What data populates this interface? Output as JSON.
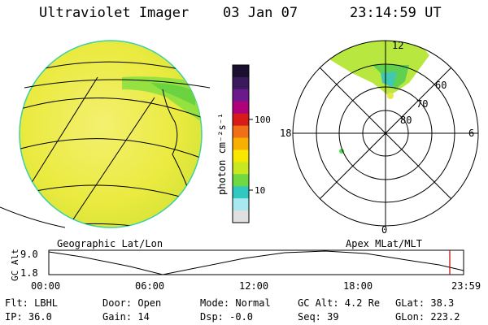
{
  "header": {
    "title": "Ultraviolet Imager",
    "date": "03 Jan 07",
    "time": "23:14:59 UT"
  },
  "colorbar": {
    "label": "photon cm⁻²s⁻¹",
    "ticks": [
      "100",
      "10"
    ],
    "colors": [
      "#1a0f2e",
      "#3a1a5c",
      "#6a1a8c",
      "#b0007a",
      "#d81a1a",
      "#f07018",
      "#f8b000",
      "#f8e800",
      "#c8e820",
      "#70d840",
      "#30c8c0",
      "#a8e8f0",
      "#e0e0e0"
    ]
  },
  "polar": {
    "mlt_labels": {
      "top": "12",
      "bottom": "0",
      "left": "18",
      "right": "6"
    },
    "lat_labels": [
      "60",
      "70",
      "80"
    ]
  },
  "labels": {
    "geo": "Geographic Lat/Lon",
    "apex": "Apex MLat/MLT"
  },
  "timeline": {
    "axis_label": "GC Alt",
    "y_top": "9.0",
    "y_bottom": "1.8",
    "times": [
      "00:00",
      "06:00",
      "12:00",
      "18:00",
      "23:59"
    ]
  },
  "info": {
    "flt": "Flt: LBHL",
    "ip": "IP: 36.0",
    "door": "Door: Open",
    "gain": "Gain: 14",
    "mode": "Mode: Normal",
    "dsp": "Dsp:   -0.0",
    "gcalt": "GC Alt: 4.2 Re",
    "seq": "Seq: 39",
    "glat": "GLat:  38.3",
    "glon": "GLon: 223.2"
  }
}
